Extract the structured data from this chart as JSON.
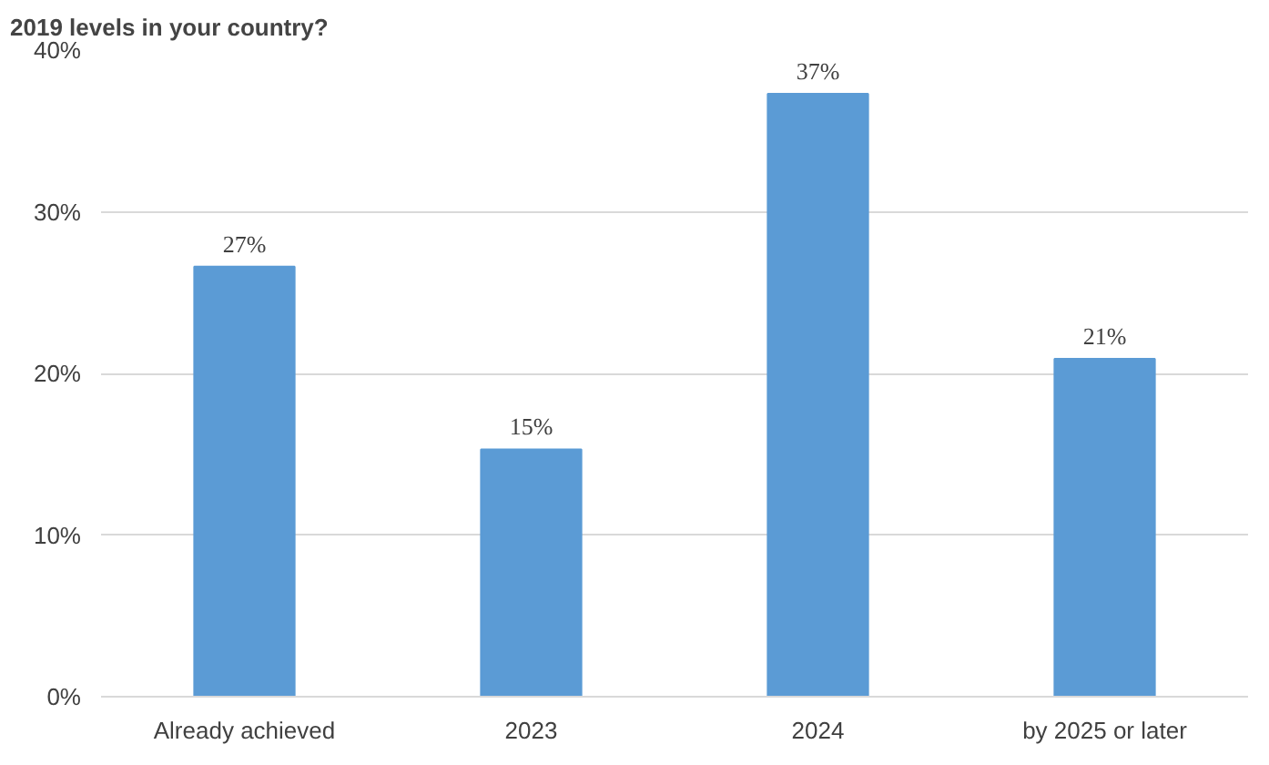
{
  "chart_data": {
    "type": "bar",
    "title": "2019 levels in your country?",
    "categories": [
      "Already achieved",
      "2023",
      "2024",
      "by 2025 or later"
    ],
    "values": [
      26.6,
      15.3,
      37.3,
      20.9
    ],
    "value_labels": [
      "27%",
      "15%",
      "37%",
      "21%"
    ],
    "color": "#5b9bd5",
    "ylim": [
      0,
      40
    ],
    "yticks": [
      {
        "value": 0,
        "label": "0%"
      },
      {
        "value": 10,
        "label": "10%"
      },
      {
        "value": 20,
        "label": "20%"
      },
      {
        "value": 30,
        "label": "30%"
      },
      {
        "value": 40,
        "label": "40%"
      }
    ],
    "grid": "y"
  }
}
